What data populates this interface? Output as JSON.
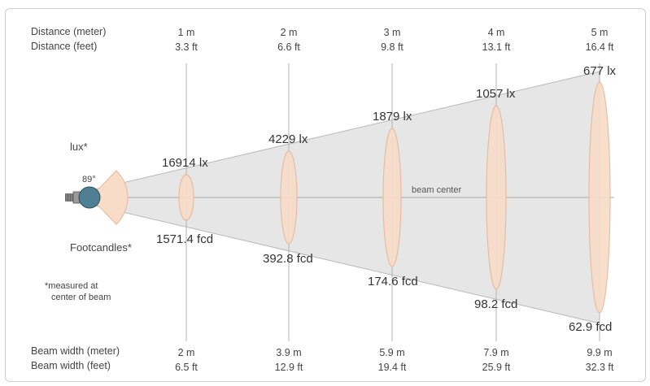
{
  "labels": {
    "distance_meter": "Distance (meter)",
    "distance_feet": "Distance (feet)",
    "beam_width_meter": "Beam width (meter)",
    "beam_width_feet": "Beam width (feet)",
    "lux": "lux*",
    "footcandles": "Footcandles*",
    "footnote_line1": "*measured at",
    "footnote_line2": "center of beam",
    "beam_angle": "89°",
    "beam_center": "beam center"
  },
  "colors": {
    "beam_fill": "#e6e6e6",
    "ellipse_fill": "#f8dcc7",
    "ellipse_stroke": "#e6b89a",
    "fixture": "#4f7f93",
    "line": "#b3b3b3"
  },
  "columns": [
    {
      "distance_m": "1 m",
      "distance_ft": "3.3 ft",
      "lux": "16914 lx",
      "fcd": "1571.4 fcd",
      "width_m": "2 m",
      "width_ft": "6.5 ft"
    },
    {
      "distance_m": "2 m",
      "distance_ft": "6.6 ft",
      "lux": "4229 lx",
      "fcd": "392.8 fcd",
      "width_m": "3.9 m",
      "width_ft": "12.9 ft"
    },
    {
      "distance_m": "3 m",
      "distance_ft": "9.8 ft",
      "lux": "1879 lx",
      "fcd": "174.6 fcd",
      "width_m": "5.9 m",
      "width_ft": "19.4 ft"
    },
    {
      "distance_m": "4 m",
      "distance_ft": "13.1 ft",
      "lux": "1057 lx",
      "fcd": "98.2 fcd",
      "width_m": "7.9 m",
      "width_ft": "25.9 ft"
    },
    {
      "distance_m": "5 m",
      "distance_ft": "16.4 ft",
      "lux": "677 lx",
      "fcd": "62.9 fcd",
      "width_m": "9.9 m",
      "width_ft": "32.3 ft"
    }
  ]
}
